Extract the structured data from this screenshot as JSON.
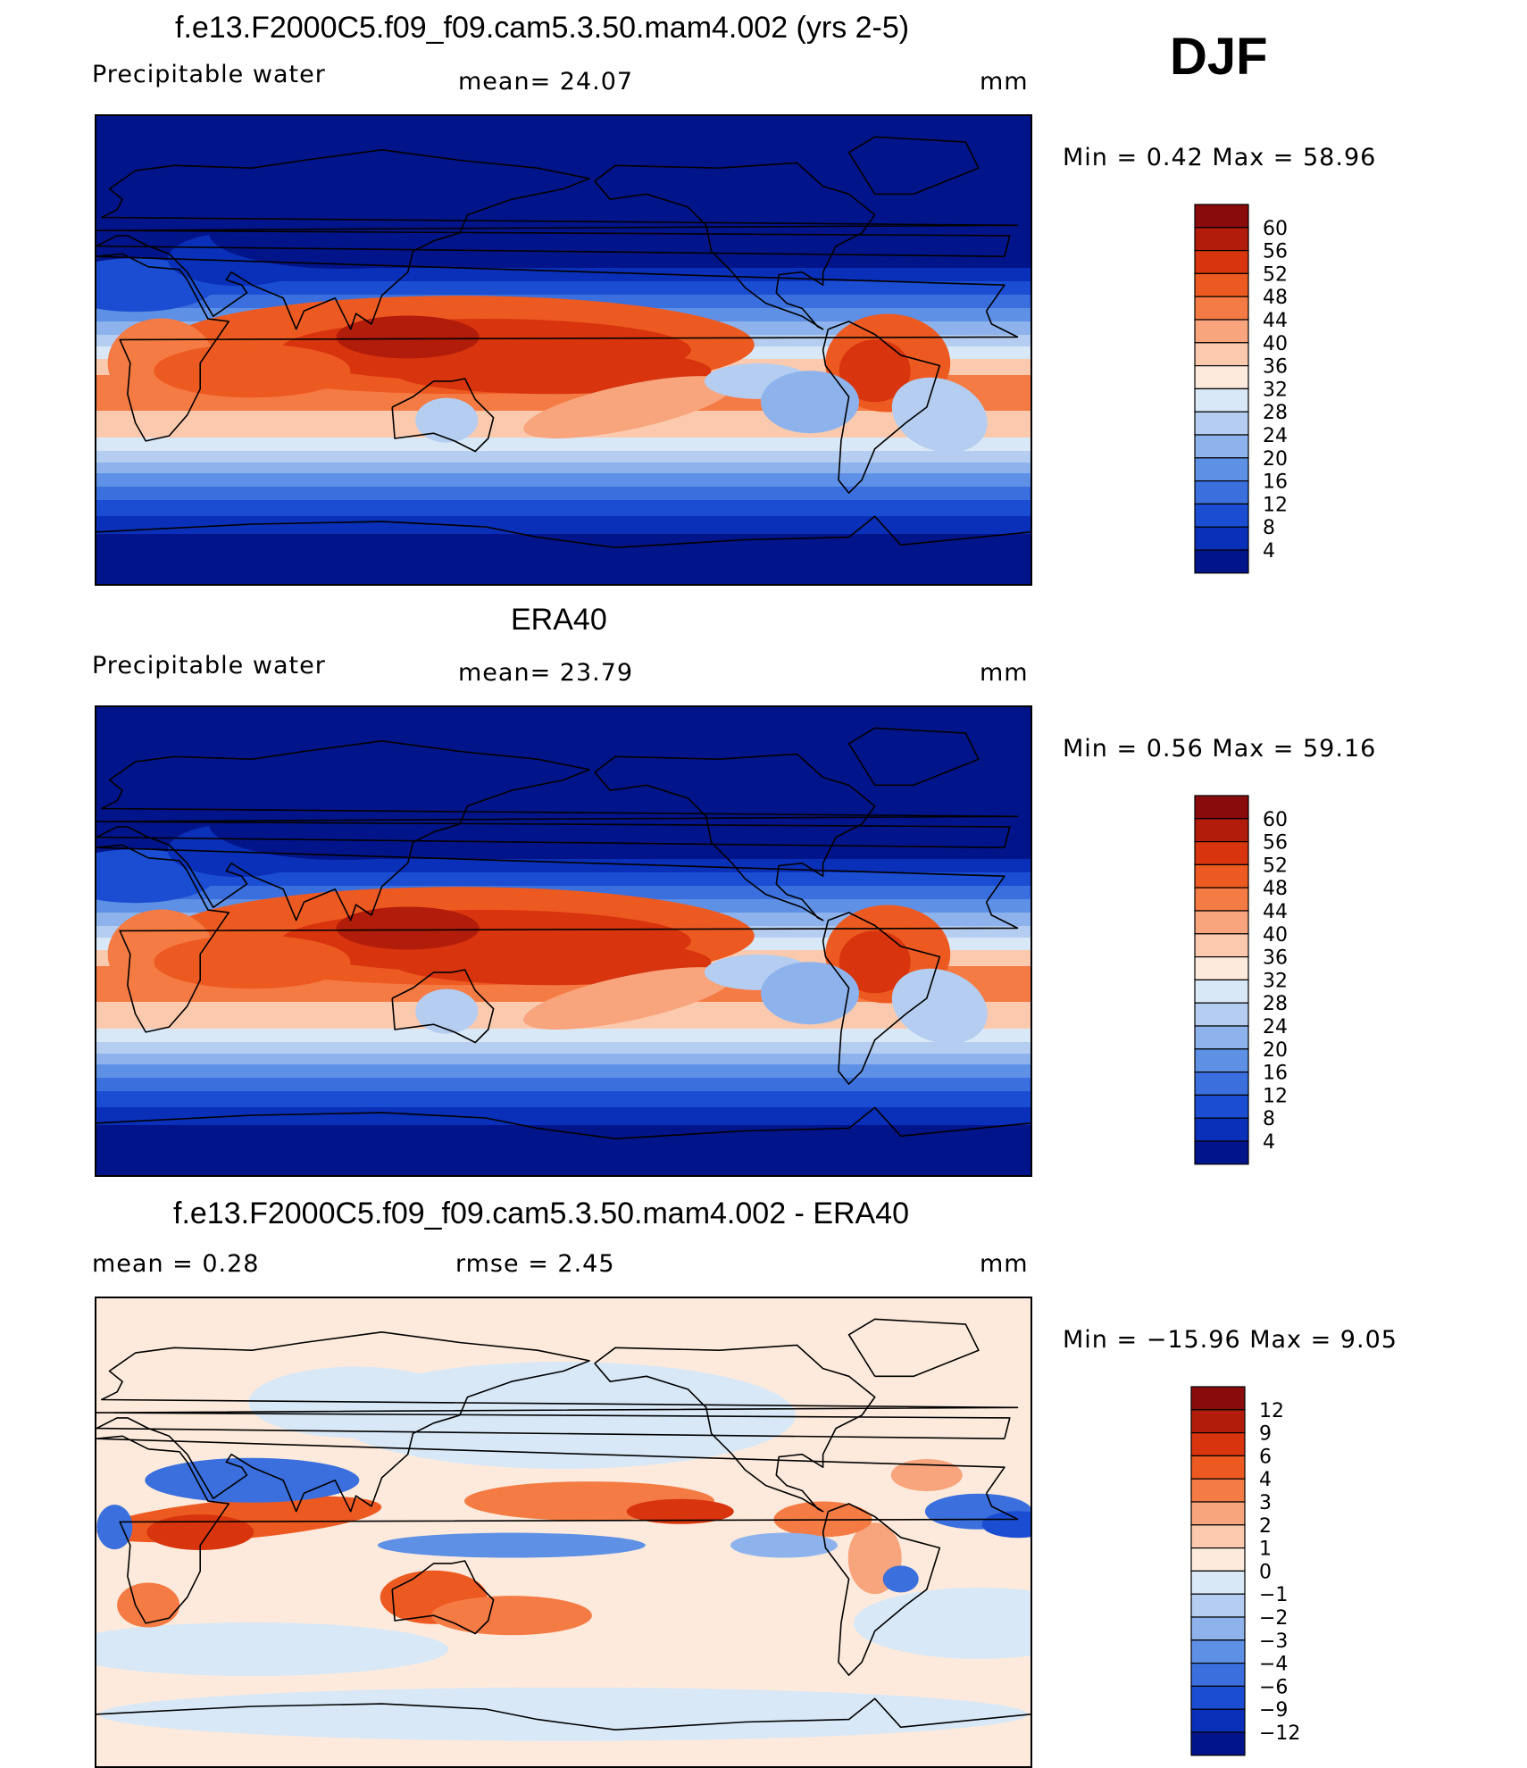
{
  "header": {
    "season": "DJF"
  },
  "panels": [
    {
      "id": "model",
      "title": "f.e13.F2000C5.f09_f09.cam5.3.50.mam4.002 (yrs 2-5)",
      "left_label": "Precipitable  water",
      "mid_label": "mean=   24.07",
      "units": "mm",
      "stats": "Min  =     0.42  Max  =     58.96",
      "colorbar": {
        "ticks": [
          "60",
          "56",
          "52",
          "48",
          "44",
          "40",
          "36",
          "32",
          "28",
          "24",
          "20",
          "16",
          "12",
          "8",
          "4"
        ],
        "colors": [
          "#8a0b0b",
          "#b21c0a",
          "#d8340e",
          "#ed5a21",
          "#f57b44",
          "#f8a47c",
          "#fbcaae",
          "#fdeadc",
          "#d9e8f7",
          "#b4cdf0",
          "#8eb3ec",
          "#5e90e6",
          "#3a6fdd",
          "#1a4dd2",
          "#0a2fb8",
          "#02148a"
        ]
      },
      "palette": "prw"
    },
    {
      "id": "obs",
      "title": "ERA40",
      "left_label": "Precipitable  water",
      "mid_label": "mean=   23.79",
      "units": "mm",
      "stats": "Min  =     0.56  Max  =     59.16",
      "colorbar": {
        "ticks": [
          "60",
          "56",
          "52",
          "48",
          "44",
          "40",
          "36",
          "32",
          "28",
          "24",
          "20",
          "16",
          "12",
          "8",
          "4"
        ],
        "colors": [
          "#8a0b0b",
          "#b21c0a",
          "#d8340e",
          "#ed5a21",
          "#f57b44",
          "#f8a47c",
          "#fbcaae",
          "#fdeadc",
          "#d9e8f7",
          "#b4cdf0",
          "#8eb3ec",
          "#5e90e6",
          "#3a6fdd",
          "#1a4dd2",
          "#0a2fb8",
          "#02148a"
        ]
      },
      "palette": "prw"
    },
    {
      "id": "diff",
      "title": "f.e13.F2000C5.f09_f09.cam5.3.50.mam4.002 - ERA40",
      "left_label": "mean  =     0.28",
      "mid_label": "rmse  =     2.45",
      "units": "mm",
      "stats": "Min  = −15.96  Max  =       9.05",
      "colorbar": {
        "ticks": [
          "12",
          "9",
          "6",
          "4",
          "3",
          "2",
          "1",
          "0",
          "−1",
          "−2",
          "−3",
          "−4",
          "−6",
          "−9",
          "−12"
        ],
        "colors": [
          "#8a0b0b",
          "#b21c0a",
          "#d8340e",
          "#ed5a21",
          "#f57b44",
          "#f8a47c",
          "#fbcaae",
          "#fdeadc",
          "#d9e8f7",
          "#b4cdf0",
          "#8eb3ec",
          "#5e90e6",
          "#3a6fdd",
          "#1a4dd2",
          "#0a2fb8",
          "#02148a"
        ]
      },
      "palette": "diff"
    }
  ]
}
